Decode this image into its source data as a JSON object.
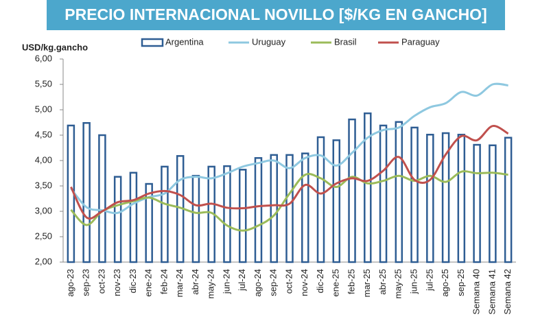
{
  "chart_data": {
    "type": "bar-line",
    "title": "PRECIO INTERNACIONAL NOVILLO [$/KG EN GANCHO]",
    "y_label": "USD/kg.gancho",
    "categories": [
      "ago-23",
      "sep-23",
      "oct-23",
      "nov-23",
      "dic-23",
      "ene-24",
      "feb-24",
      "mar-24",
      "abr-24",
      "may-24",
      "jun-24",
      "jul-24",
      "ago-24",
      "sep-24",
      "oct-24",
      "nov-24",
      "dic-24",
      "ene-25",
      "feb-25",
      "mar-25",
      "abr-25",
      "may-25",
      "jun-25",
      "jul-25",
      "ago-25",
      "sep-25",
      "Semana 40",
      "Semana 41",
      "Semana 42"
    ],
    "series": [
      {
        "name": "Argentina",
        "type": "bar",
        "color": "#2e5d93",
        "values": [
          4.69,
          4.74,
          4.5,
          3.68,
          3.76,
          3.54,
          3.88,
          4.09,
          3.7,
          3.88,
          3.89,
          3.82,
          4.05,
          4.11,
          4.11,
          4.14,
          4.46,
          4.4,
          4.81,
          4.93,
          4.69,
          4.76,
          4.65,
          4.51,
          4.54,
          4.51,
          4.31,
          4.3,
          4.45
        ]
      },
      {
        "name": "Uruguay",
        "type": "line",
        "color": "#8ec8e0",
        "values": [
          3.45,
          3.08,
          3.02,
          2.97,
          3.15,
          3.28,
          3.35,
          3.62,
          3.68,
          3.65,
          3.75,
          3.88,
          3.95,
          4.0,
          3.85,
          4.05,
          4.1,
          3.9,
          4.15,
          4.45,
          4.6,
          4.65,
          4.88,
          5.05,
          5.13,
          5.35,
          5.28,
          5.5,
          5.48
        ]
      },
      {
        "name": "Brasil",
        "type": "line",
        "color": "#9bbb59",
        "values": [
          3.03,
          2.73,
          3.0,
          3.12,
          3.2,
          3.27,
          3.15,
          3.07,
          2.97,
          2.97,
          2.72,
          2.62,
          2.72,
          2.92,
          3.35,
          3.72,
          3.65,
          3.48,
          3.68,
          3.55,
          3.6,
          3.7,
          3.6,
          3.7,
          3.58,
          3.78,
          3.75,
          3.76,
          3.72
        ]
      },
      {
        "name": "Paraguay",
        "type": "line",
        "color": "#c0504d",
        "values": [
          3.48,
          2.88,
          3.0,
          3.18,
          3.22,
          3.35,
          3.4,
          3.32,
          3.12,
          3.15,
          3.07,
          3.06,
          3.1,
          3.12,
          3.15,
          3.52,
          3.35,
          3.55,
          3.65,
          3.6,
          3.8,
          4.07,
          3.62,
          3.62,
          4.12,
          4.48,
          4.4,
          4.68,
          4.53
        ]
      }
    ],
    "ylim": [
      2,
      6
    ],
    "yticks": [
      {
        "value": 2,
        "label": "2,00"
      },
      {
        "value": 2.5,
        "label": "2,50"
      },
      {
        "value": 3,
        "label": "3,00"
      },
      {
        "value": 3.5,
        "label": "3,50"
      },
      {
        "value": 4,
        "label": "4,00"
      },
      {
        "value": 4.5,
        "label": "4,50"
      },
      {
        "value": 5,
        "label": "5,00"
      },
      {
        "value": 5.5,
        "label": "5,50"
      },
      {
        "value": 6,
        "label": "6,00"
      }
    ],
    "banner_color": "#4ca7cc"
  }
}
